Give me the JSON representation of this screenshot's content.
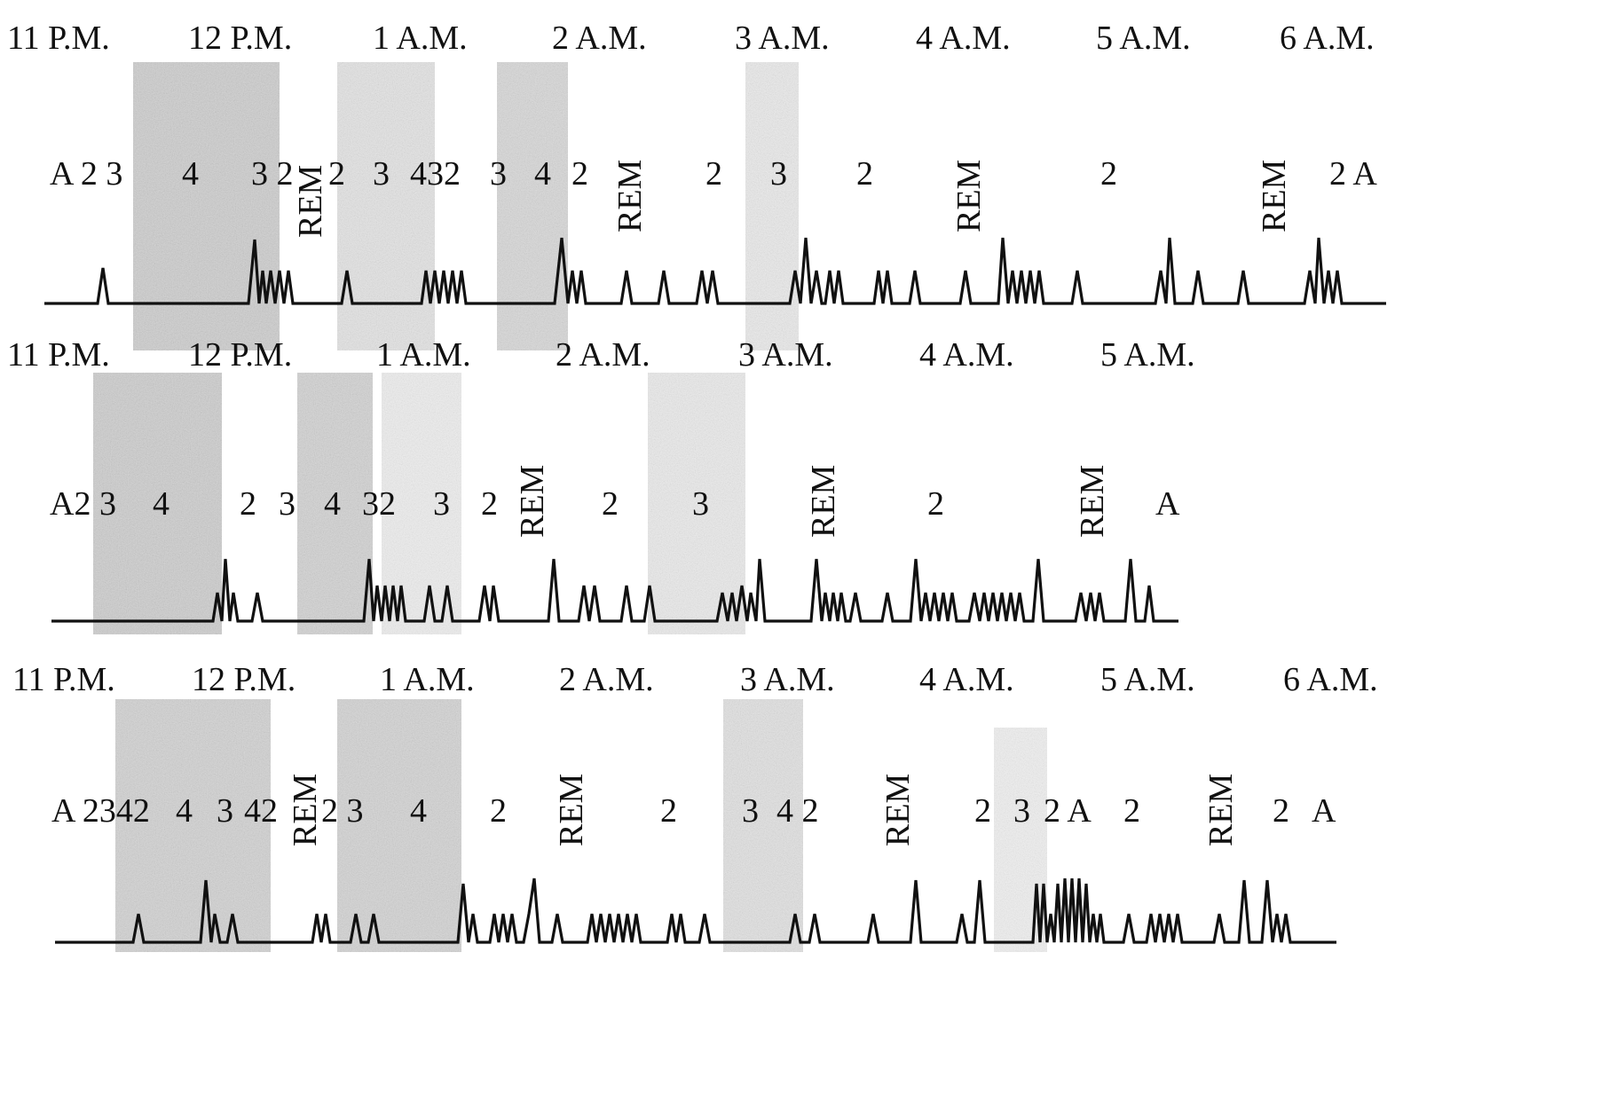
{
  "panels": [
    {
      "id": "top",
      "time_labels": [
        "11 P.M.",
        "12 P.M.",
        "1 A.M.",
        "2 A.M.",
        "3 A.M.",
        "4 A.M.",
        "5 A.M.",
        "6 A.M."
      ],
      "stage_labels": [
        "A 2 3",
        "4",
        "3 2",
        "REM",
        "2",
        "3",
        "432",
        "3",
        "4",
        "2",
        "REM",
        "2",
        "3",
        "2",
        "REM",
        "2",
        "REM",
        "2 A"
      ]
    },
    {
      "id": "middle",
      "time_labels": [
        "11 P.M.",
        "12 P.M.",
        "1 A.M.",
        "2 A.M.",
        "3 A.M.",
        "4 A.M.",
        "5 A.M."
      ],
      "stage_labels": [
        "A2 3",
        "4",
        "2",
        "3",
        "4",
        "32",
        "3",
        "2",
        "REM",
        "2",
        "3",
        "REM",
        "2",
        "REM",
        "A"
      ]
    },
    {
      "id": "bottom",
      "time_labels": [
        "11 P.M.",
        "12 P.M.",
        "1 A.M.",
        "2 A.M.",
        "3 A.M.",
        "4 A.M.",
        "5 A.M.",
        "6 A.M."
      ],
      "stage_labels": [
        "A 2342",
        "4",
        "3",
        "42",
        "REM",
        "2 3",
        "4",
        "2",
        "REM",
        "2",
        "3",
        "4 2",
        "REM",
        "2",
        "3",
        "2 A",
        "2",
        "REM",
        "2",
        "A"
      ]
    }
  ],
  "colors": {
    "ink": "#111111",
    "deep_sleep_shade": "#b8b8b8",
    "light_shade": "#dcdcdc"
  }
}
